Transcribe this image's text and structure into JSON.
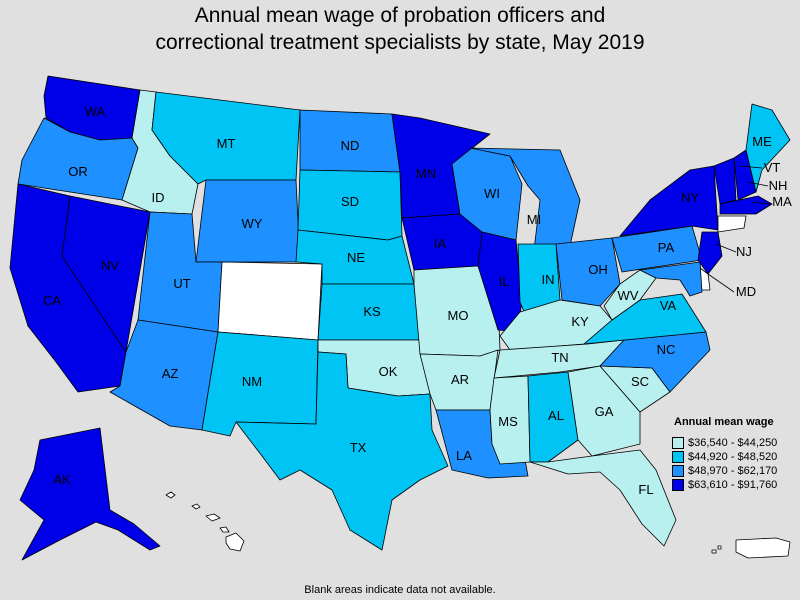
{
  "title": {
    "line1": "Annual mean wage of probation officers and",
    "line2": "correctional treatment specialists by state, May 2019"
  },
  "legend": {
    "title": "Annual mean wage",
    "bins": [
      {
        "label": "$36,540 - $44,250",
        "color": "#b8f0f0"
      },
      {
        "label": "$44,920 - $48,520",
        "color": "#00c4f4"
      },
      {
        "label": "$48,970 - $62,170",
        "color": "#1e90ff"
      },
      {
        "label": "$63,610 - $91,760",
        "color": "#0000e8"
      }
    ]
  },
  "no_data_color": "#ffffff",
  "footnote": "Blank areas indicate data not available.",
  "states": {
    "WA": 3,
    "OR": 2,
    "CA": 3,
    "NV": 3,
    "ID": 0,
    "MT": 1,
    "WY": 2,
    "UT": 2,
    "AZ": 2,
    "CO": -1,
    "NM": 1,
    "ND": 2,
    "SD": 1,
    "NE": 1,
    "KS": 1,
    "OK": 0,
    "TX": 1,
    "MN": 3,
    "IA": 3,
    "MO": 0,
    "AR": 0,
    "LA": 2,
    "WI": 2,
    "IL": 3,
    "MI": 2,
    "IN": 1,
    "OH": 2,
    "KY": 0,
    "TN": 0,
    "MS": 0,
    "AL": 1,
    "GA": 0,
    "FL": 0,
    "SC": 0,
    "NC": 2,
    "VA": 1,
    "WV": 0,
    "PA": 2,
    "NY": 3,
    "VT": 3,
    "NH": 3,
    "ME": 1,
    "MA": 3,
    "CT": -1,
    "NJ": 3,
    "DE": -1,
    "MD": 2,
    "AK": 3
  },
  "callouts": [
    "VT",
    "NH",
    "MA",
    "NJ",
    "MD"
  ]
}
